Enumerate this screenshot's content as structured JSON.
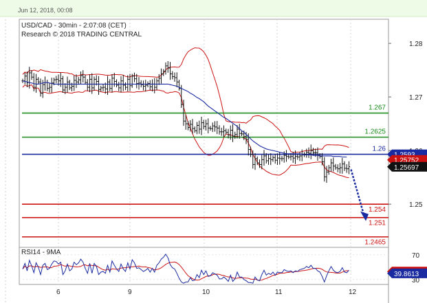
{
  "header": {
    "date_text": "Jun 12, 2018, 00:08"
  },
  "chart_data": {
    "type": "candlestick",
    "title": "USD/CAD - 30min - 2:07:08 (CET)",
    "subtitle": "Research © 2018 TRADING CENTRAL",
    "x_ticks": [
      "6",
      "9",
      "10",
      "11",
      "12"
    ],
    "price_ticks": [
      1.28,
      1.27,
      1.26,
      1.25
    ],
    "ylim": [
      1.2422,
      1.2845
    ],
    "levels": [
      {
        "label": "1.267",
        "value": 1.267,
        "color": "#1a8a1a"
      },
      {
        "label": "1.2625",
        "value": 1.2625,
        "color": "#1a8a1a"
      },
      {
        "label": "1.26",
        "value": 1.2593,
        "color": "#1a2aa0"
      },
      {
        "label": "1.254",
        "value": 1.25,
        "color": "#cc1111"
      },
      {
        "label": "1.251",
        "value": 1.2475,
        "color": "#cc1111"
      },
      {
        "label": "1.2465",
        "value": 1.2439,
        "color": "#cc1111"
      }
    ],
    "price_tags": [
      {
        "label": "1.2593",
        "value": 1.2593,
        "color": "#1a2aa0"
      },
      {
        "label": "1.25752",
        "value": 1.25826,
        "color": "#cc1111"
      },
      {
        "label": "1.25697",
        "value": 1.25697,
        "color": "#111111"
      }
    ],
    "close": [
      1.273,
      1.2739,
      1.2727,
      1.2745,
      1.2737,
      1.2718,
      1.2733,
      1.2728,
      1.2707,
      1.2723,
      1.2727,
      1.2716,
      1.2718,
      1.2726,
      1.2732,
      1.2733,
      1.273,
      1.2734,
      1.2713,
      1.2718,
      1.2728,
      1.2717,
      1.272,
      1.2731,
      1.2728,
      1.2732,
      1.274,
      1.2737,
      1.2727,
      1.2718,
      1.2733,
      1.2717,
      1.2733,
      1.2729,
      1.2714,
      1.2717,
      1.2718,
      1.2715,
      1.2728,
      1.2716,
      1.2735,
      1.2729,
      1.2722,
      1.2717,
      1.273,
      1.2722,
      1.2718,
      1.2733,
      1.2721,
      1.2739,
      1.2734,
      1.2725,
      1.2726,
      1.2723,
      1.272,
      1.2722,
      1.2725,
      1.2719,
      1.2724,
      1.2718,
      1.273,
      1.2735,
      1.2743,
      1.2748,
      1.2758,
      1.2754,
      1.2743,
      1.2738,
      1.2736,
      1.2728,
      1.2716,
      1.2686,
      1.2655,
      1.265,
      1.2643,
      1.2649,
      1.2641,
      1.2637,
      1.2647,
      1.264,
      1.2652,
      1.2645,
      1.265,
      1.2642,
      1.2641,
      1.2646,
      1.2644,
      1.2642,
      1.2635,
      1.2635,
      1.2637,
      1.2634,
      1.2629,
      1.2638,
      1.2627,
      1.263,
      1.264,
      1.2632,
      1.2631,
      1.2626,
      1.2621,
      1.2602,
      1.2593,
      1.2574,
      1.2585,
      1.2577,
      1.2574,
      1.2583,
      1.259,
      1.2581,
      1.2585,
      1.2583,
      1.2587,
      1.2582,
      1.2586,
      1.2585,
      1.2585,
      1.2591,
      1.2589,
      1.2588,
      1.2589,
      1.2586,
      1.2589,
      1.2588,
      1.259,
      1.2592,
      1.2593,
      1.2597,
      1.2595,
      1.26,
      1.2596,
      1.2596,
      1.2591,
      1.2589,
      1.2579,
      1.2551,
      1.256,
      1.2568,
      1.2577,
      1.2571,
      1.2568,
      1.2566,
      1.2568,
      1.2575,
      1.2567,
      1.2566,
      1.257
    ],
    "ma": [
      1.273,
      1.2729,
      1.2728,
      1.2727,
      1.2726,
      1.2725,
      1.2724,
      1.2724,
      1.2725,
      1.2726,
      1.2727,
      1.2727,
      1.2726,
      1.2725,
      1.2724,
      1.2724,
      1.2724,
      1.2724,
      1.2724,
      1.2724,
      1.2724,
      1.2724,
      1.2724,
      1.2724,
      1.2724,
      1.2724,
      1.2724,
      1.2724,
      1.2724,
      1.2724,
      1.2724,
      1.2724,
      1.2724,
      1.2724,
      1.2724,
      1.2724,
      1.2724,
      1.2724,
      1.2724,
      1.2724,
      1.2724,
      1.2724,
      1.2724,
      1.2724,
      1.2724,
      1.2724,
      1.2724,
      1.2724,
      1.2724,
      1.2724,
      1.2724,
      1.2724,
      1.2724,
      1.2724,
      1.2724,
      1.2724,
      1.2724,
      1.2724,
      1.2724,
      1.2724,
      1.2724,
      1.2724,
      1.2724,
      1.2724,
      1.2724,
      1.2724,
      1.2723,
      1.2722,
      1.2721,
      1.272,
      1.2718,
      1.2716,
      1.2714,
      1.2712,
      1.271,
      1.2707,
      1.2705,
      1.2702,
      1.2699,
      1.2697,
      1.2694,
      1.2691,
      1.2687,
      1.2683,
      1.268,
      1.2677,
      1.2674,
      1.2671,
      1.2668,
      1.2665,
      1.2662,
      1.266,
      1.2657,
      1.2654,
      1.2651,
      1.2648,
      1.2645,
      1.2641,
      1.2637,
      1.2634,
      1.263,
      1.2626,
      1.2622,
      1.2618,
      1.2615,
      1.2612,
      1.2609,
      1.2607,
      1.2605,
      1.2603,
      1.2602,
      1.2601,
      1.26,
      1.2599,
      1.2598,
      1.2597,
      1.2596,
      1.2595,
      1.2594,
      1.2594,
      1.2594,
      1.2594,
      1.2594,
      1.2594,
      1.2594,
      1.2593,
      1.2592,
      1.2592,
      1.2592,
      1.2592,
      1.2591,
      1.2591,
      1.2591,
      1.259,
      1.259,
      1.259,
      1.259,
      1.259,
      1.259,
      1.2589,
      1.2589,
      1.2589,
      1.2589,
      1.2588,
      1.2588,
      1.2588
    ],
    "rsi": {
      "label": "RSI14 - 9MA",
      "ticks": [
        70,
        30
      ],
      "ylim": [
        22,
        82
      ],
      "tags": [
        {
          "label": "42.7948",
          "value": 42.79,
          "color": "#cc1111"
        },
        {
          "label": "39.8613",
          "value": 39.86,
          "color": "#1a2aa0"
        }
      ],
      "values": [
        47,
        56,
        44,
        61,
        52,
        41,
        57,
        50,
        38,
        53,
        56,
        46,
        48,
        55,
        60,
        59,
        55,
        58,
        38,
        44,
        55,
        44,
        47,
        58,
        54,
        57,
        63,
        58,
        48,
        40,
        56,
        40,
        56,
        51,
        38,
        42,
        43,
        40,
        53,
        42,
        60,
        53,
        47,
        43,
        55,
        47,
        43,
        57,
        47,
        62,
        57,
        48,
        49,
        46,
        43,
        45,
        48,
        42,
        48,
        42,
        53,
        57,
        63,
        66,
        71,
        65,
        54,
        49,
        47,
        40,
        32,
        26,
        24,
        26,
        26,
        33,
        28,
        29,
        38,
        33,
        45,
        38,
        44,
        35,
        36,
        41,
        39,
        37,
        31,
        31,
        34,
        31,
        27,
        37,
        27,
        31,
        42,
        34,
        34,
        30,
        28,
        25,
        25,
        24,
        34,
        29,
        28,
        38,
        45,
        37,
        40,
        38,
        42,
        37,
        42,
        41,
        41,
        46,
        44,
        43,
        44,
        41,
        44,
        43,
        46,
        47,
        48,
        51,
        49,
        53,
        48,
        48,
        44,
        42,
        35,
        26,
        36,
        44,
        51,
        45,
        42,
        41,
        43,
        49,
        42,
        41,
        45
      ]
    }
  }
}
